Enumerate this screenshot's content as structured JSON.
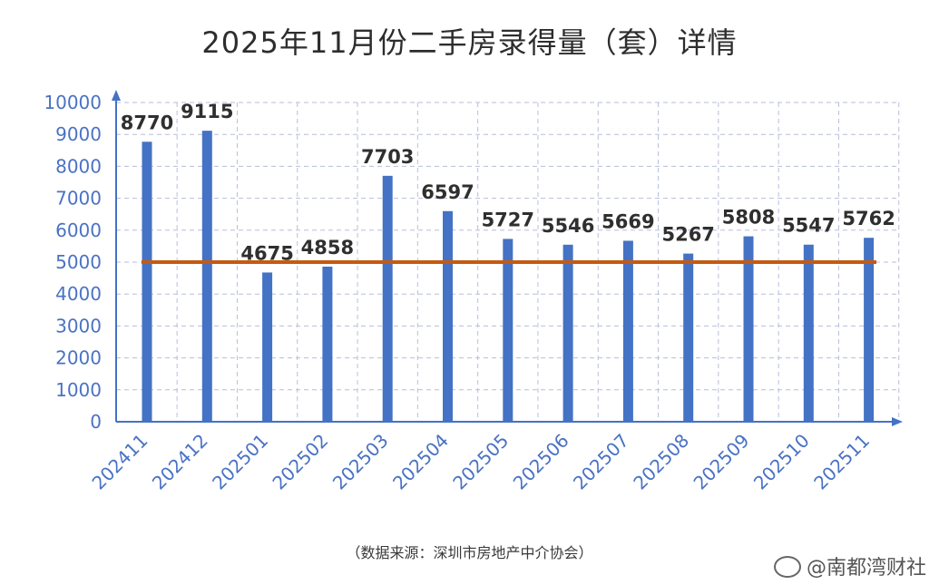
{
  "chart_data": {
    "type": "bar",
    "title": "2025年11月份二手房录得量（套）详情",
    "categories": [
      "202411",
      "202412",
      "202501",
      "202502",
      "202503",
      "202504",
      "202505",
      "202506",
      "202507",
      "202508",
      "202509",
      "202510",
      "202511"
    ],
    "values": [
      8770,
      9115,
      4675,
      4858,
      7703,
      6597,
      5727,
      5546,
      5669,
      5267,
      5808,
      5547,
      5762
    ],
    "reference_line": 5000,
    "ylim": [
      0,
      10000
    ],
    "yticks": [
      0,
      1000,
      2000,
      3000,
      4000,
      5000,
      6000,
      7000,
      8000,
      9000,
      10000
    ],
    "grid": true,
    "colors": {
      "bar": "#4472c4",
      "reference_line": "#c55a11",
      "axis_label": "#4a72c4",
      "grid": "#b8bedc"
    }
  },
  "source_note": "（数据来源：深圳市房地产中介协会）",
  "watermark": "@南都湾财社"
}
